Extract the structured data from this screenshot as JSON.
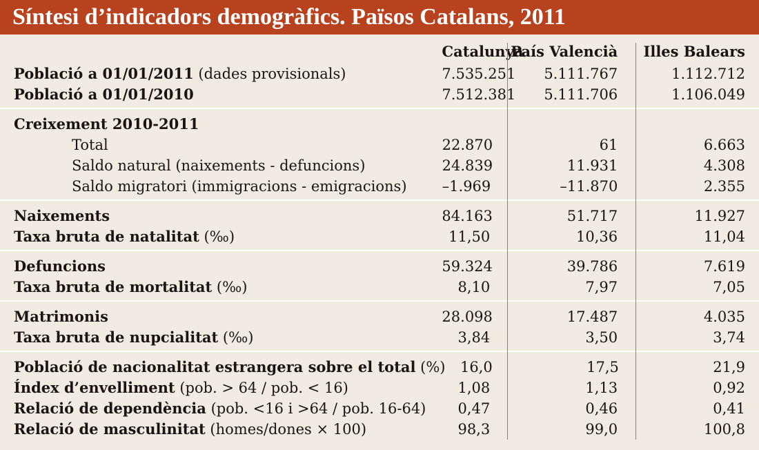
{
  "title": "Síntesi d’indicadors demogràfics. Països Catalans, 2011",
  "columns": [
    "Catalunya",
    "País Valencià",
    "Illes Balears"
  ],
  "groups": [
    {
      "rows": [
        {
          "bold": "Població a 01/01/2011",
          "rest": " (dades provisionals)",
          "indent": false,
          "values": [
            "7.535.251",
            "5.111.767",
            "1.112.712"
          ]
        },
        {
          "bold": "Població a 01/01/2010",
          "rest": "",
          "indent": false,
          "values": [
            "7.512.381",
            "5.111.706",
            "1.106.049"
          ]
        }
      ]
    },
    {
      "rows": [
        {
          "bold": "Creixement 2010-2011",
          "rest": "",
          "indent": false,
          "values": [
            "",
            "",
            ""
          ]
        },
        {
          "bold": "",
          "rest": "Total",
          "indent": true,
          "values": [
            "22.870",
            "61",
            "6.663"
          ]
        },
        {
          "bold": "",
          "rest": "Saldo natural (naixements - defuncions)",
          "indent": true,
          "values": [
            "24.839",
            "11.931",
            "4.308"
          ]
        },
        {
          "bold": "",
          "rest": "Saldo migratori (immigracions - emigracions)",
          "indent": true,
          "values": [
            "–1.969",
            "–11.870",
            "2.355"
          ]
        }
      ]
    },
    {
      "rows": [
        {
          "bold": "Naixements",
          "rest": "",
          "indent": false,
          "values": [
            "84.163",
            "51.717",
            "11.927"
          ]
        },
        {
          "bold": "Taxa bruta de natalitat",
          "rest": " (‰)",
          "indent": false,
          "values": [
            "11,50",
            "10,36",
            "11,04"
          ]
        }
      ]
    },
    {
      "rows": [
        {
          "bold": "Defuncions",
          "rest": "",
          "indent": false,
          "values": [
            "59.324",
            "39.786",
            "7.619"
          ]
        },
        {
          "bold": "Taxa bruta de mortalitat",
          "rest": " (‰)",
          "indent": false,
          "values": [
            "8,10",
            "7,97",
            "7,05"
          ]
        }
      ]
    },
    {
      "rows": [
        {
          "bold": "Matrimonis",
          "rest": "",
          "indent": false,
          "values": [
            "28.098",
            "17.487",
            "4.035"
          ]
        },
        {
          "bold": "Taxa bruta de nupcialitat",
          "rest": " (‰)",
          "indent": false,
          "values": [
            "3,84",
            "3,50",
            "3,74"
          ]
        }
      ]
    },
    {
      "rows": [
        {
          "bold": "Població de nacionalitat estrangera sobre el total",
          "rest": " (%)",
          "indent": false,
          "values": [
            "16,0",
            "17,5",
            "21,9"
          ]
        },
        {
          "bold": "Índex d’envelliment",
          "rest": " (pob. > 64 / pob. < 16)",
          "indent": false,
          "values": [
            "1,08",
            "1,13",
            "0,92"
          ]
        },
        {
          "bold": "Relació de dependència",
          "rest": " (pob. <16 i >64 / pob. 16-64)",
          "indent": false,
          "values": [
            "0,47",
            "0,46",
            "0,41"
          ]
        },
        {
          "bold": "Relació de masculinitat",
          "rest": " (homes/dones × 100)",
          "indent": false,
          "values": [
            "98,3",
            "99,0",
            "100,8"
          ]
        }
      ]
    }
  ]
}
